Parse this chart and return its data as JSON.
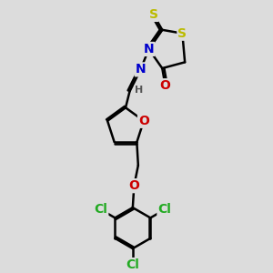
{
  "bg_color": "#dcdcdc",
  "atom_colors": {
    "C": "#000000",
    "H": "#555555",
    "S": "#bbbb00",
    "N": "#0000cc",
    "O": "#cc0000",
    "Cl": "#22aa22"
  },
  "bond_color": "#000000",
  "bond_width": 1.8,
  "font_size_atom": 10,
  "font_size_h": 8
}
